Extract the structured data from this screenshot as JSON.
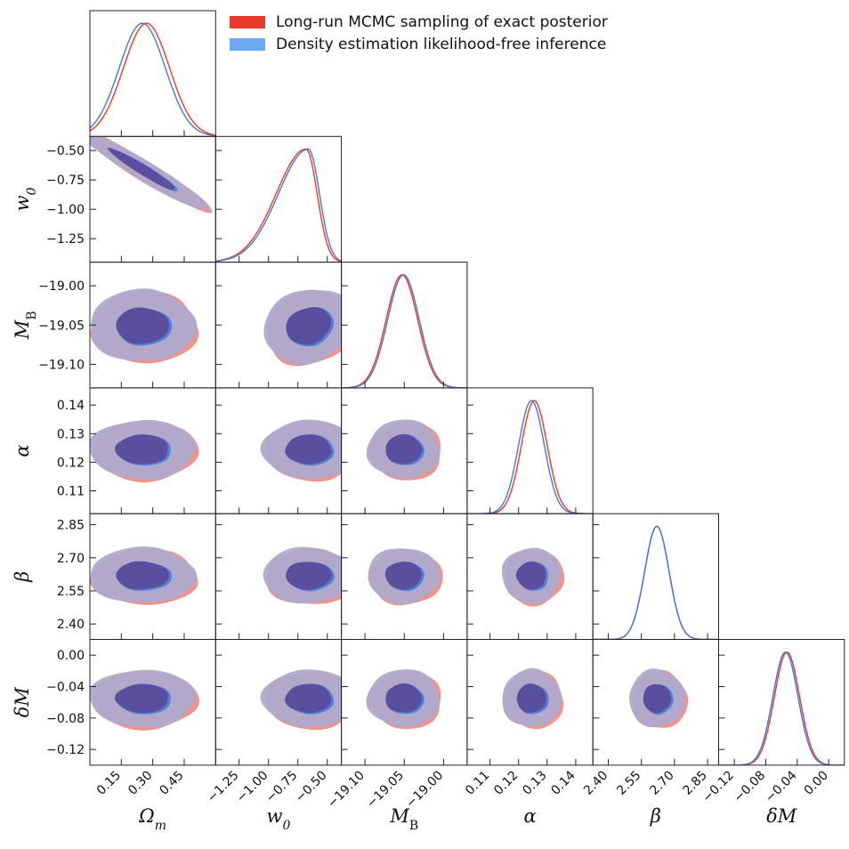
{
  "chart_data": {
    "type": "corner",
    "title": "",
    "parameters": [
      {
        "label": "Ωm",
        "base": "Ω",
        "sub": "m",
        "ticks": [
          0.15,
          0.3,
          0.45
        ],
        "tick_labels": [
          "0.15",
          "0.30",
          "0.45"
        ],
        "range": [
          0.0,
          0.6
        ],
        "x_only": true
      },
      {
        "label": "w0",
        "base": "w",
        "sub": "0",
        "ticks": [
          -1.25,
          -1.0,
          -0.75,
          -0.5
        ],
        "tick_labels": [
          "−1.25",
          "−1.00",
          "−0.75",
          "−0.50"
        ],
        "range": [
          -1.45,
          -0.38
        ]
      },
      {
        "label": "MB",
        "base": "M",
        "sub": "B",
        "ticks": [
          -19.1,
          -19.05,
          -19.0
        ],
        "tick_labels": [
          "−19.10",
          "−19.05",
          "−19.00"
        ],
        "range": [
          -19.13,
          -18.97
        ]
      },
      {
        "label": "α",
        "base": "α",
        "sub": "",
        "ticks": [
          0.11,
          0.12,
          0.13,
          0.14
        ],
        "tick_labels": [
          "0.11",
          "0.12",
          "0.13",
          "0.14"
        ],
        "range": [
          0.102,
          0.146
        ]
      },
      {
        "label": "β",
        "base": "β",
        "sub": "",
        "ticks": [
          2.4,
          2.55,
          2.7,
          2.85
        ],
        "tick_labels": [
          "2.40",
          "2.55",
          "2.70",
          "2.85"
        ],
        "range": [
          2.33,
          2.9
        ]
      },
      {
        "label": "δM",
        "base": "δM",
        "sub": "",
        "ticks": [
          -0.12,
          -0.08,
          -0.04,
          0.0
        ],
        "tick_labels": [
          "−0.12",
          "−0.08",
          "−0.04",
          "0.00"
        ],
        "range": [
          -0.14,
          0.02
        ]
      }
    ],
    "marginals": [
      {
        "param": "Ωm",
        "mcmc_mode": 0.27,
        "dle_mode": 0.25,
        "sigma": 0.11
      },
      {
        "param": "w0",
        "mcmc_mode": -0.68,
        "dle_mode": -0.66,
        "sigma": 0.17
      },
      {
        "param": "MB",
        "mcmc_mode": -19.053,
        "dle_mode": -19.051,
        "sigma": 0.02
      },
      {
        "param": "α",
        "mcmc_mode": 0.1255,
        "dle_mode": 0.1245,
        "sigma": 0.0045
      },
      {
        "param": "β",
        "mcmc_mode": 2.62,
        "dle_mode": 2.62,
        "sigma": 0.055
      },
      {
        "param": "δM",
        "mcmc_mode": -0.053,
        "dle_mode": -0.055,
        "sigma": 0.016
      }
    ],
    "credible_regions": [
      "68%",
      "95%"
    ],
    "series": [
      {
        "name": "Long-run MCMC sampling of exact posterior",
        "color": "#e8392a",
        "fill": "#e8392a"
      },
      {
        "name": "Density estimation likelihood-free inference",
        "color": "#3f7ad9",
        "fill": "#6ca9f0"
      }
    ],
    "legend_position": "top-right"
  },
  "colors": {
    "mcmc": "#e8392a",
    "dle": "#3f7ad9",
    "outer_fill": "#aeaacc",
    "inner_fill": "#5a4e9e"
  }
}
